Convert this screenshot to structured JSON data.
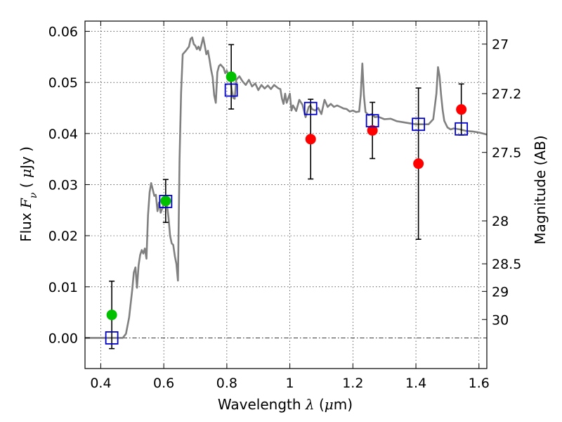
{
  "chart_data": {
    "type": "scatter",
    "xlabel": {
      "text": "Wavelength",
      "symbol": "λ",
      "unit_open": "(",
      "unit_mu": "μ",
      "unit_rest": "m)"
    },
    "ylabel": {
      "text": "Flux",
      "symbol": "F",
      "subscript": "ν",
      "unit_open": "(",
      "unit_mu": "μ",
      "unit_rest": "Jy",
      "unit_close": ")"
    },
    "y2label": "Magnitude (AB)",
    "xlim": [
      0.35,
      1.625
    ],
    "ylim": [
      -0.006,
      0.062
    ],
    "x_ticks": [
      0.4,
      0.6,
      0.8,
      1.0,
      1.2,
      1.4,
      1.6
    ],
    "x_tick_labels": [
      "0.4",
      "0.6",
      "0.8",
      "1",
      "1.2",
      "1.4",
      "1.6"
    ],
    "y_ticks": [
      0.0,
      0.01,
      0.02,
      0.03,
      0.04,
      0.05,
      0.06
    ],
    "y_tick_labels": [
      "0.00",
      "0.01",
      "0.02",
      "0.03",
      "0.04",
      "0.05",
      "0.06"
    ],
    "mag_ticks": [
      {
        "label": "27",
        "flux": 0.0575
      },
      {
        "label": "27.2",
        "flux": 0.0478
      },
      {
        "label": "27.5",
        "flux": 0.0363
      },
      {
        "label": "28",
        "flux": 0.0229
      },
      {
        "label": "28.5",
        "flux": 0.0145
      },
      {
        "label": "29",
        "flux": 0.0091
      },
      {
        "label": "30",
        "flux": 0.0036
      }
    ],
    "grid": true,
    "zero_line": true,
    "colors": {
      "sed": "#808080",
      "model": "#0000cc",
      "detection": "#00c000",
      "low_significance": "#ff0000",
      "errorbar": "#000000"
    },
    "sed_curve": [
      [
        0.35,
        0.0
      ],
      [
        0.47,
        0.0
      ],
      [
        0.48,
        0.0008
      ],
      [
        0.49,
        0.004
      ],
      [
        0.5,
        0.0095
      ],
      [
        0.505,
        0.0128
      ],
      [
        0.51,
        0.0138
      ],
      [
        0.515,
        0.0098
      ],
      [
        0.52,
        0.0142
      ],
      [
        0.525,
        0.0162
      ],
      [
        0.53,
        0.0172
      ],
      [
        0.535,
        0.0165
      ],
      [
        0.54,
        0.0175
      ],
      [
        0.545,
        0.0155
      ],
      [
        0.55,
        0.024
      ],
      [
        0.555,
        0.0285
      ],
      [
        0.56,
        0.0303
      ],
      [
        0.565,
        0.029
      ],
      [
        0.57,
        0.0278
      ],
      [
        0.575,
        0.028
      ],
      [
        0.58,
        0.0248
      ],
      [
        0.585,
        0.0265
      ],
      [
        0.59,
        0.0245
      ],
      [
        0.6,
        0.0262
      ],
      [
        0.61,
        0.0262
      ],
      [
        0.615,
        0.0235
      ],
      [
        0.62,
        0.02
      ],
      [
        0.625,
        0.0185
      ],
      [
        0.63,
        0.0182
      ],
      [
        0.635,
        0.016
      ],
      [
        0.64,
        0.0145
      ],
      [
        0.645,
        0.0112
      ],
      [
        0.65,
        0.035
      ],
      [
        0.655,
        0.048
      ],
      [
        0.66,
        0.0555
      ],
      [
        0.67,
        0.0562
      ],
      [
        0.68,
        0.057
      ],
      [
        0.685,
        0.0585
      ],
      [
        0.69,
        0.0588
      ],
      [
        0.695,
        0.0575
      ],
      [
        0.7,
        0.0572
      ],
      [
        0.705,
        0.0565
      ],
      [
        0.71,
        0.057
      ],
      [
        0.715,
        0.0563
      ],
      [
        0.72,
        0.0575
      ],
      [
        0.725,
        0.0588
      ],
      [
        0.73,
        0.0572
      ],
      [
        0.735,
        0.0555
      ],
      [
        0.74,
        0.0562
      ],
      [
        0.745,
        0.0545
      ],
      [
        0.75,
        0.0525
      ],
      [
        0.755,
        0.051
      ],
      [
        0.76,
        0.0475
      ],
      [
        0.765,
        0.046
      ],
      [
        0.77,
        0.052
      ],
      [
        0.775,
        0.0532
      ],
      [
        0.78,
        0.0535
      ],
      [
        0.79,
        0.0528
      ],
      [
        0.795,
        0.0518
      ],
      [
        0.8,
        0.0523
      ],
      [
        0.805,
        0.0514
      ],
      [
        0.81,
        0.0515
      ],
      [
        0.815,
        0.0488
      ],
      [
        0.82,
        0.047
      ],
      [
        0.825,
        0.0468
      ],
      [
        0.83,
        0.0505
      ],
      [
        0.84,
        0.0512
      ],
      [
        0.85,
        0.0502
      ],
      [
        0.86,
        0.0495
      ],
      [
        0.87,
        0.0505
      ],
      [
        0.88,
        0.0492
      ],
      [
        0.89,
        0.0498
      ],
      [
        0.9,
        0.0485
      ],
      [
        0.91,
        0.0495
      ],
      [
        0.92,
        0.0488
      ],
      [
        0.93,
        0.0494
      ],
      [
        0.94,
        0.0487
      ],
      [
        0.95,
        0.0495
      ],
      [
        0.96,
        0.049
      ],
      [
        0.965,
        0.0488
      ],
      [
        0.97,
        0.0487
      ],
      [
        0.975,
        0.0468
      ],
      [
        0.98,
        0.0458
      ],
      [
        0.985,
        0.0478
      ],
      [
        0.99,
        0.046
      ],
      [
        1.0,
        0.0478
      ],
      [
        1.005,
        0.0445
      ],
      [
        1.01,
        0.0455
      ],
      [
        1.02,
        0.0444
      ],
      [
        1.03,
        0.0466
      ],
      [
        1.04,
        0.0456
      ],
      [
        1.05,
        0.0432
      ],
      [
        1.06,
        0.0452
      ],
      [
        1.065,
        0.0455
      ],
      [
        1.07,
        0.0448
      ],
      [
        1.08,
        0.0445
      ],
      [
        1.09,
        0.045
      ],
      [
        1.1,
        0.0438
      ],
      [
        1.11,
        0.0466
      ],
      [
        1.12,
        0.0452
      ],
      [
        1.13,
        0.0458
      ],
      [
        1.14,
        0.0452
      ],
      [
        1.15,
        0.0455
      ],
      [
        1.16,
        0.0452
      ],
      [
        1.17,
        0.0449
      ],
      [
        1.18,
        0.0448
      ],
      [
        1.19,
        0.0443
      ],
      [
        1.2,
        0.0445
      ],
      [
        1.21,
        0.0442
      ],
      [
        1.22,
        0.0443
      ],
      [
        1.225,
        0.0475
      ],
      [
        1.23,
        0.0537
      ],
      [
        1.235,
        0.0475
      ],
      [
        1.24,
        0.0442
      ],
      [
        1.25,
        0.0436
      ],
      [
        1.26,
        0.0438
      ],
      [
        1.27,
        0.0432
      ],
      [
        1.28,
        0.0433
      ],
      [
        1.3,
        0.0428
      ],
      [
        1.32,
        0.0429
      ],
      [
        1.34,
        0.0424
      ],
      [
        1.36,
        0.0422
      ],
      [
        1.38,
        0.042
      ],
      [
        1.4,
        0.0418
      ],
      [
        1.42,
        0.0418
      ],
      [
        1.44,
        0.0418
      ],
      [
        1.455,
        0.0428
      ],
      [
        1.465,
        0.0478
      ],
      [
        1.47,
        0.053
      ],
      [
        1.475,
        0.0512
      ],
      [
        1.48,
        0.0475
      ],
      [
        1.485,
        0.0445
      ],
      [
        1.49,
        0.0425
      ],
      [
        1.5,
        0.0412
      ],
      [
        1.51,
        0.0408
      ],
      [
        1.52,
        0.041
      ],
      [
        1.54,
        0.0408
      ],
      [
        1.56,
        0.0405
      ],
      [
        1.58,
        0.0404
      ],
      [
        1.6,
        0.0402
      ],
      [
        1.625,
        0.0398
      ]
    ],
    "series": [
      {
        "marker": "square",
        "points": [
          {
            "x": 0.435,
            "y": 0.0
          },
          {
            "x": 0.606,
            "y": 0.0267
          },
          {
            "x": 0.814,
            "y": 0.0485
          },
          {
            "x": 1.066,
            "y": 0.0449
          },
          {
            "x": 1.262,
            "y": 0.0425
          },
          {
            "x": 1.408,
            "y": 0.0418
          },
          {
            "x": 1.544,
            "y": 0.0409
          }
        ]
      },
      {
        "marker": "circle-green",
        "points": [
          {
            "x": 0.435,
            "y": 0.0045,
            "err": 0.0066
          },
          {
            "x": 0.606,
            "y": 0.0268,
            "err": 0.0042
          },
          {
            "x": 0.814,
            "y": 0.0511,
            "err": 0.0063
          }
        ]
      },
      {
        "marker": "circle-red",
        "points": [
          {
            "x": 1.066,
            "y": 0.0389,
            "err": 0.0078
          },
          {
            "x": 1.262,
            "y": 0.0406,
            "err": 0.0055
          },
          {
            "x": 1.408,
            "y": 0.0341,
            "err": 0.0148
          },
          {
            "x": 1.544,
            "y": 0.0447,
            "err": 0.005
          }
        ]
      }
    ]
  }
}
